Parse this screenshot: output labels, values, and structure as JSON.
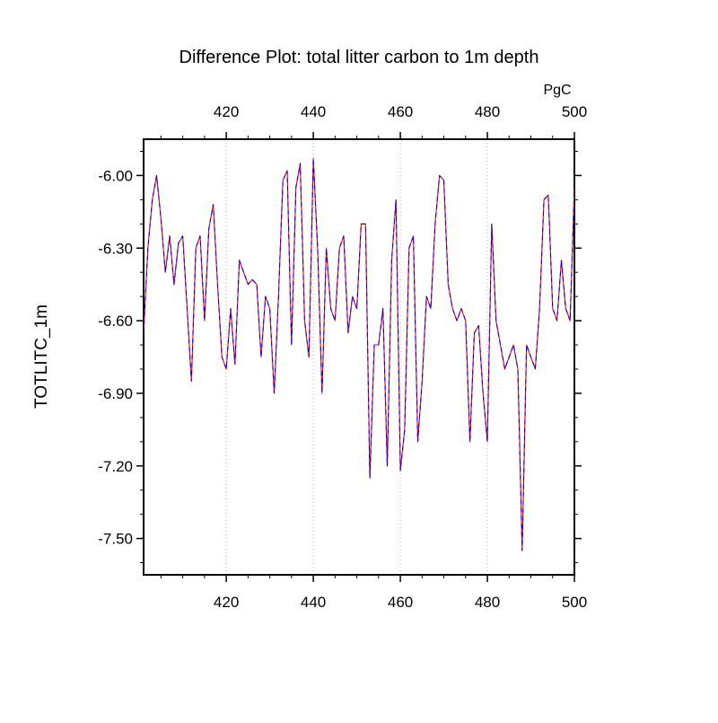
{
  "title": "Difference Plot: total litter carbon to 1m depth",
  "top_axis": {
    "label": "PgC",
    "tick_labels": [
      "420",
      "440",
      "460",
      "480",
      "500"
    ],
    "tick_values": [
      420,
      440,
      460,
      480,
      500
    ],
    "color": "#0000ff"
  },
  "bottom_axis": {
    "tick_labels": [
      "420",
      "440",
      "460",
      "480",
      "500"
    ],
    "tick_values": [
      420,
      440,
      460,
      480,
      500
    ],
    "color": "#ff0000"
  },
  "y_axis": {
    "label": "TOTLITC_1m",
    "tick_labels": [
      "-6.00",
      "-6.30",
      "-6.60",
      "-6.90",
      "-7.20",
      "-7.50"
    ],
    "tick_values": [
      -6.0,
      -6.3,
      -6.6,
      -6.9,
      -7.2,
      -7.5
    ],
    "color": "#000000"
  },
  "chart_data": {
    "type": "line",
    "title": "Difference Plot: total litter carbon to 1m depth",
    "top_axis_unit": "PgC",
    "ylabel": "TOTLITC_1m",
    "xlim": [
      401,
      500
    ],
    "ylim": [
      -7.65,
      -5.85
    ],
    "x_gridlines": [
      420,
      440,
      460,
      480
    ],
    "grid_style": "vertical-dotted-gray",
    "note": "Two overlapping curves (red solid underneath, blue dashed on top) with identical values, appearing purple.",
    "x": [
      401,
      402,
      403,
      404,
      405,
      406,
      407,
      408,
      409,
      410,
      411,
      412,
      413,
      414,
      415,
      416,
      417,
      418,
      419,
      420,
      421,
      422,
      423,
      424,
      425,
      426,
      427,
      428,
      429,
      430,
      431,
      432,
      433,
      434,
      435,
      436,
      437,
      438,
      439,
      440,
      441,
      442,
      443,
      444,
      445,
      446,
      447,
      448,
      449,
      450,
      451,
      452,
      453,
      454,
      455,
      456,
      457,
      458,
      459,
      460,
      461,
      462,
      463,
      464,
      465,
      466,
      467,
      468,
      469,
      470,
      471,
      472,
      473,
      474,
      475,
      476,
      477,
      478,
      479,
      480,
      481,
      482,
      483,
      484,
      485,
      486,
      487,
      488,
      489,
      490,
      491,
      492,
      493,
      494,
      495,
      496,
      497,
      498,
      499,
      500
    ],
    "values": [
      -6.65,
      -6.3,
      -6.1,
      -6.0,
      -6.18,
      -6.4,
      -6.25,
      -6.45,
      -6.28,
      -6.25,
      -6.55,
      -6.85,
      -6.3,
      -6.25,
      -6.6,
      -6.22,
      -6.12,
      -6.45,
      -6.75,
      -6.8,
      -6.55,
      -6.78,
      -6.35,
      -6.4,
      -6.45,
      -6.43,
      -6.45,
      -6.75,
      -6.5,
      -6.55,
      -6.9,
      -6.5,
      -6.02,
      -5.98,
      -6.7,
      -6.05,
      -5.95,
      -6.6,
      -6.75,
      -5.93,
      -6.3,
      -6.9,
      -6.3,
      -6.55,
      -6.6,
      -6.3,
      -6.25,
      -6.65,
      -6.5,
      -6.55,
      -6.2,
      -6.2,
      -7.25,
      -6.7,
      -6.7,
      -6.55,
      -7.2,
      -6.35,
      -6.1,
      -7.22,
      -7.05,
      -6.3,
      -6.25,
      -7.1,
      -6.85,
      -6.5,
      -6.55,
      -6.2,
      -6.0,
      -6.02,
      -6.45,
      -6.55,
      -6.6,
      -6.55,
      -6.6,
      -7.1,
      -6.65,
      -6.62,
      -6.9,
      -7.1,
      -6.2,
      -6.6,
      -6.7,
      -6.8,
      -6.75,
      -6.7,
      -6.8,
      -7.55,
      -6.7,
      -6.75,
      -6.8,
      -6.55,
      -6.1,
      -6.08,
      -6.55,
      -6.6,
      -6.35,
      -6.55,
      -6.6,
      -6.05
    ],
    "series_styles": [
      {
        "name": "case-red-solid",
        "color": "#ff0000",
        "line_style": "solid"
      },
      {
        "name": "case-blue-dashed",
        "color": "#0000ff",
        "line_style": "dashed"
      }
    ]
  }
}
